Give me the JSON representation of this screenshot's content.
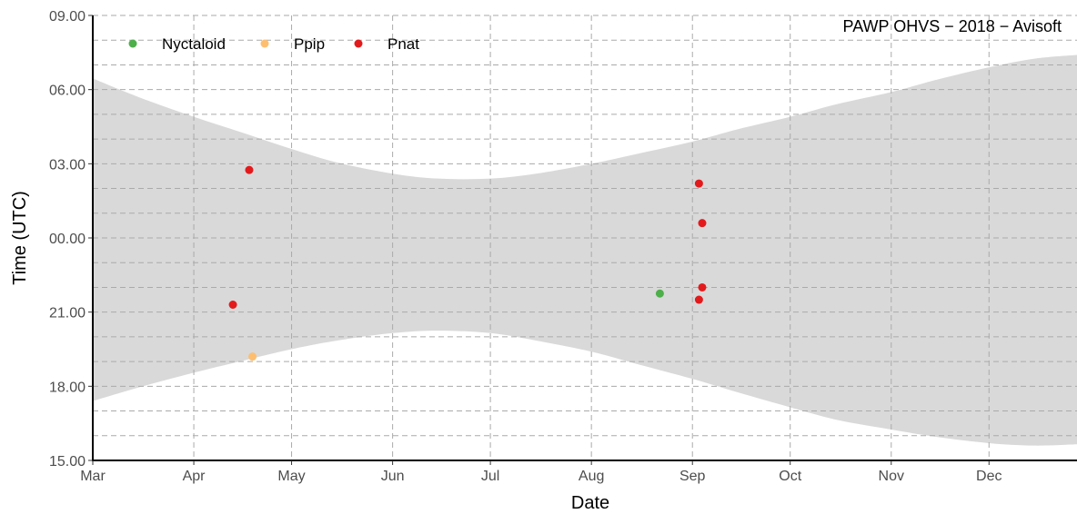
{
  "chart_data": {
    "type": "scatter",
    "title": "",
    "annotation": "PAWP OHVS − 2018 − Avisoft",
    "xlabel": "Date",
    "ylabel": "Time (UTC)",
    "x_ticks": [
      {
        "label": "Mar",
        "date": "2018-03-01"
      },
      {
        "label": "Apr",
        "date": "2018-04-01"
      },
      {
        "label": "May",
        "date": "2018-05-01"
      },
      {
        "label": "Jun",
        "date": "2018-06-01"
      },
      {
        "label": "Jul",
        "date": "2018-07-01"
      },
      {
        "label": "Aug",
        "date": "2018-08-01"
      },
      {
        "label": "Sep",
        "date": "2018-09-01"
      },
      {
        "label": "Oct",
        "date": "2018-10-01"
      },
      {
        "label": "Nov",
        "date": "2018-11-01"
      },
      {
        "label": "Dec",
        "date": "2018-12-01"
      }
    ],
    "xlim": [
      "2018-03-01",
      "2018-12-28"
    ],
    "y_ticks": [
      "15.00",
      "18.00",
      "21.00",
      "00.00",
      "03.00",
      "06.00",
      "09.00"
    ],
    "ylim_hours": [
      15,
      33
    ],
    "grid": true,
    "legend_position": "top-left",
    "series": [
      {
        "name": "Nyctaloid",
        "color": "#4daf4a",
        "points": [
          {
            "date": "2018-08-22",
            "time": "21.75"
          }
        ]
      },
      {
        "name": "Ppip",
        "color": "#fdbf6f",
        "points": [
          {
            "date": "2018-04-19",
            "time": "19.20"
          }
        ]
      },
      {
        "name": "Pnat",
        "color": "#e31a1c",
        "points": [
          {
            "date": "2018-04-13",
            "time": "21.30"
          },
          {
            "date": "2018-04-18",
            "time": "02.75"
          },
          {
            "date": "2018-09-03",
            "time": "02.20"
          },
          {
            "date": "2018-09-04",
            "time": "00.60"
          },
          {
            "date": "2018-09-04",
            "time": "22.00"
          },
          {
            "date": "2018-09-03",
            "time": "21.50"
          }
        ]
      }
    ],
    "band": {
      "color": "#d9d9d9",
      "name": "",
      "dates": [
        "2018-03-01",
        "2018-03-15",
        "2018-04-01",
        "2018-04-15",
        "2018-05-01",
        "2018-05-15",
        "2018-06-01",
        "2018-06-15",
        "2018-07-01",
        "2018-07-15",
        "2018-08-01",
        "2018-08-15",
        "2018-09-01",
        "2018-09-15",
        "2018-10-01",
        "2018-10-15",
        "2018-11-01",
        "2018-11-15",
        "2018-12-01",
        "2018-12-15",
        "2018-12-28"
      ],
      "sunset": [
        "17.40",
        "17.95",
        "18.55",
        "19.00",
        "19.50",
        "19.85",
        "20.15",
        "20.25",
        "20.15",
        "19.85",
        "19.40",
        "18.90",
        "18.30",
        "17.75",
        "17.15",
        "16.65",
        "16.25",
        "15.95",
        "15.70",
        "15.60",
        "15.65"
      ],
      "sunrise": [
        "30.45",
        "29.70",
        "28.90",
        "28.30",
        "27.60",
        "27.05",
        "26.60",
        "26.40",
        "26.40",
        "26.60",
        "27.00",
        "27.40",
        "27.90",
        "28.40",
        "28.90",
        "29.40",
        "29.90",
        "30.40",
        "30.90",
        "31.25",
        "31.40"
      ]
    }
  }
}
